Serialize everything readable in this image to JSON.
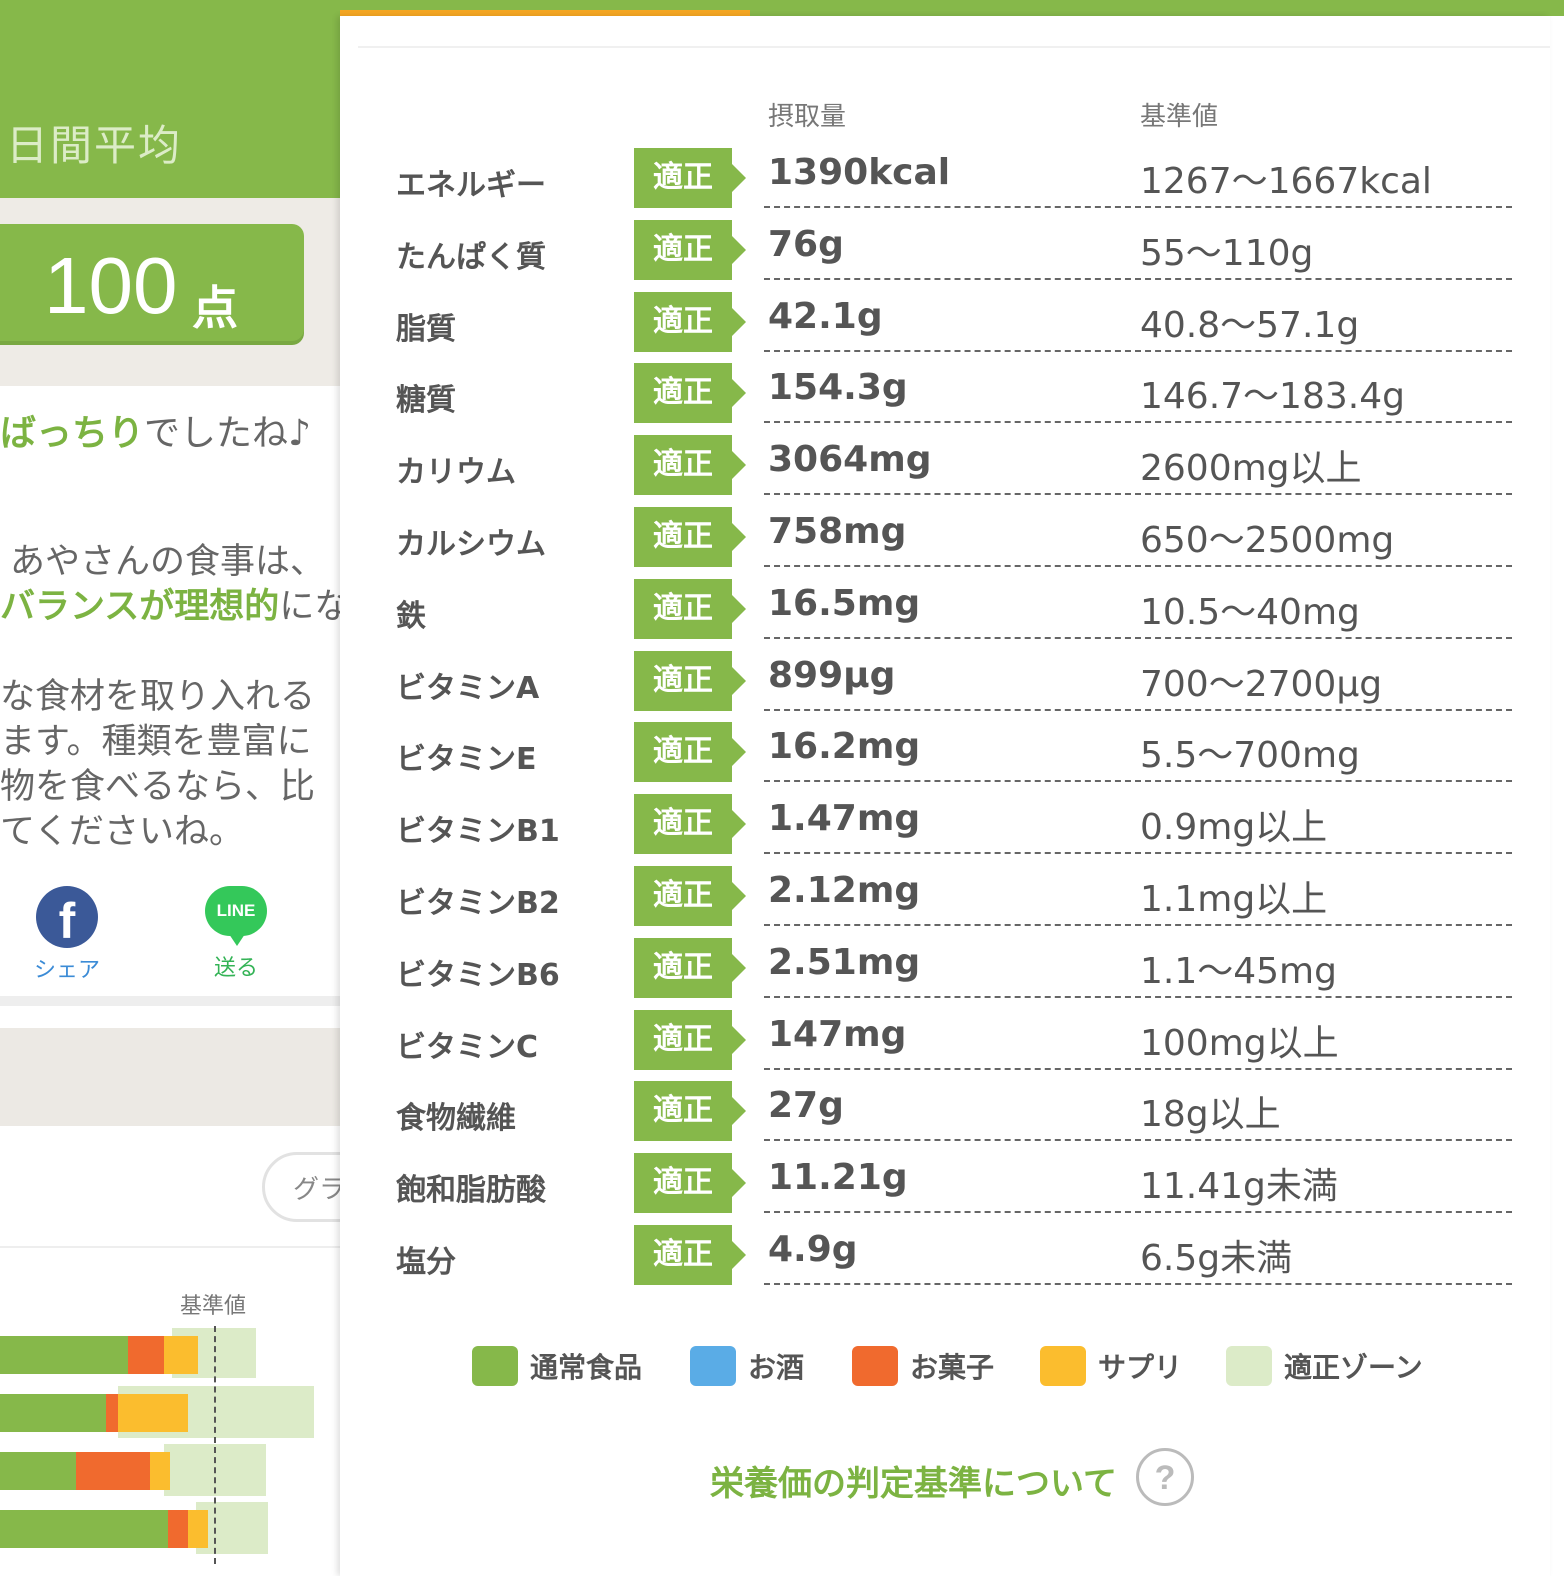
{
  "background_page": {
    "period_title": "日間平均",
    "score": {
      "value": "100",
      "unit": "点"
    },
    "message_line": {
      "highlight": "ばっちり",
      "rest": "でしたね♪"
    },
    "advice": {
      "line1": "あやさんの食事は、",
      "line2_highlight": "バランスが理想的",
      "line2_rest": "にな",
      "line3": "な食材を取り入れる",
      "line4": "ます。種類を豊富に",
      "line5": "物を食べるなら、比",
      "line6": "てくださいね。"
    },
    "share": {
      "facebook_label": "シェア",
      "line_label": "送る",
      "line_icon_text": "LINE",
      "facebook_icon_text": "f"
    },
    "graph_toggle_label": "グラ",
    "chart_standard_label": "基準値"
  },
  "table": {
    "headers": {
      "intake": "摂取量",
      "standard": "基準値"
    },
    "rows": [
      {
        "name": "エネルギー",
        "status": "適正",
        "intake": "1390kcal",
        "standard": "1267〜1667kcal"
      },
      {
        "name": "たんぱく質",
        "status": "適正",
        "intake": "76g",
        "standard": "55〜110g"
      },
      {
        "name": "脂質",
        "status": "適正",
        "intake": "42.1g",
        "standard": "40.8〜57.1g"
      },
      {
        "name": "糖質",
        "status": "適正",
        "intake": "154.3g",
        "standard": "146.7〜183.4g"
      },
      {
        "name": "カリウム",
        "status": "適正",
        "intake": "3064mg",
        "standard": "2600mg以上"
      },
      {
        "name": "カルシウム",
        "status": "適正",
        "intake": "758mg",
        "standard": "650〜2500mg"
      },
      {
        "name": "鉄",
        "status": "適正",
        "intake": "16.5mg",
        "standard": "10.5〜40mg"
      },
      {
        "name": "ビタミンA",
        "status": "適正",
        "intake": "899μg",
        "standard": "700〜2700μg"
      },
      {
        "name": "ビタミンE",
        "status": "適正",
        "intake": "16.2mg",
        "standard": "5.5〜700mg"
      },
      {
        "name": "ビタミンB1",
        "status": "適正",
        "intake": "1.47mg",
        "standard": "0.9mg以上"
      },
      {
        "name": "ビタミンB2",
        "status": "適正",
        "intake": "2.12mg",
        "standard": "1.1mg以上"
      },
      {
        "name": "ビタミンB6",
        "status": "適正",
        "intake": "2.51mg",
        "standard": "1.1〜45mg"
      },
      {
        "name": "ビタミンC",
        "status": "適正",
        "intake": "147mg",
        "standard": "100mg以上"
      },
      {
        "name": "食物繊維",
        "status": "適正",
        "intake": "27g",
        "standard": "18g以上"
      },
      {
        "name": "飽和脂肪酸",
        "status": "適正",
        "intake": "11.21g",
        "standard": "11.41g未満"
      },
      {
        "name": "塩分",
        "status": "適正",
        "intake": "4.9g",
        "standard": "6.5g未満"
      }
    ]
  },
  "legend": [
    {
      "label": "通常食品",
      "color": "#86b84a"
    },
    {
      "label": "お酒",
      "color": "#5aace6"
    },
    {
      "label": "お菓子",
      "color": "#f06a2e"
    },
    {
      "label": "サプリ",
      "color": "#fbbd2e"
    },
    {
      "label": "適正ゾーン",
      "color": "#dcebc8"
    }
  ],
  "criteria_link": "栄養価の判定基準について",
  "help_icon_text": "?",
  "colors": {
    "brand_green": "#86b84a",
    "accent_orange": "#f5a623"
  }
}
